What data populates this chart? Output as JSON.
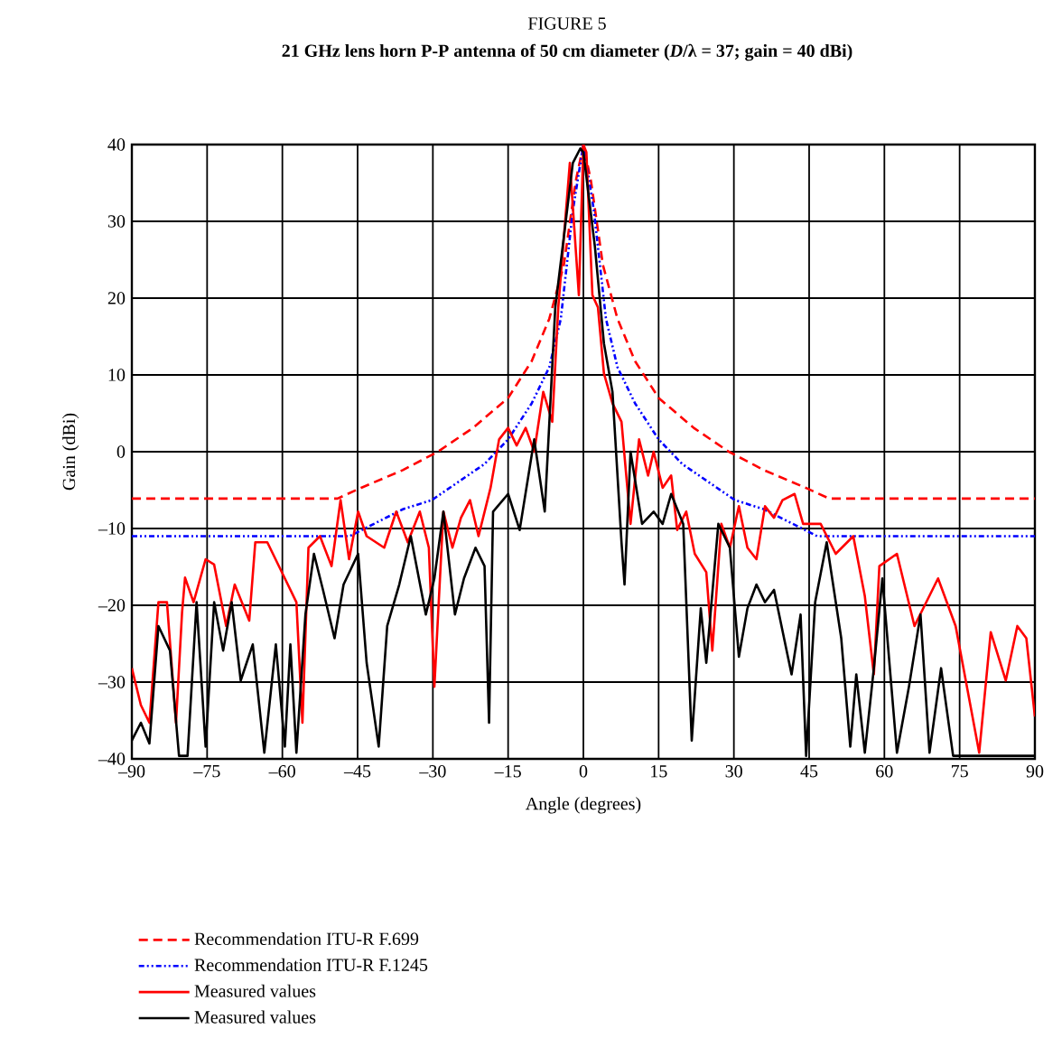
{
  "chart_data": {
    "type": "line",
    "title": "FIGURE 5",
    "subtitle": "21 GHz lens horn P-P antenna of 50 cm diameter (*D*/λ = 37; gain = 40 dBi)",
    "xlabel": "Angle (degrees)",
    "ylabel": "Gain (dBi)",
    "xlim": [
      -90,
      90
    ],
    "ylim": [
      -40,
      40
    ],
    "xticks": [
      {
        "value": -90,
        "label": "–90"
      },
      {
        "value": -75,
        "label": "–75"
      },
      {
        "value": -60,
        "label": "–60"
      },
      {
        "value": -45,
        "label": "–45"
      },
      {
        "value": -30,
        "label": "–30"
      },
      {
        "value": -15,
        "label": "–15"
      },
      0,
      15,
      30,
      45,
      60,
      75,
      90
    ],
    "yticks": [
      {
        "value": -40,
        "label": "–40"
      },
      {
        "value": -30,
        "label": "–30"
      },
      {
        "value": -20,
        "label": "–20"
      },
      {
        "value": -10,
        "label": "–10"
      },
      0,
      10,
      20,
      30,
      40
    ],
    "grid": true,
    "legend": "bottom",
    "marker": "none",
    "series": [
      {
        "name": "Recommendation ITU-R F.699",
        "color": "#ff0000",
        "line_style": "dashed",
        "x": [
          -90,
          -49,
          -44.3,
          -36,
          -29,
          -22,
          -15,
          -10.3,
          -6.8,
          -3.9,
          -1.5,
          0,
          1.5,
          3.9,
          6.8,
          10.3,
          15,
          22,
          29,
          36,
          44.3,
          49,
          90
        ],
        "values": [
          -6.1,
          -6.1,
          -4.7,
          -2.4,
          0,
          3.1,
          7,
          11.8,
          17.3,
          24.3,
          35.3,
          40,
          35.3,
          24.3,
          17.3,
          11.8,
          7,
          3.1,
          0,
          -2.4,
          -4.7,
          -6.1,
          -6.1
        ]
      },
      {
        "name": "Recommendation ITU-R F.1245",
        "color": "#0000ff",
        "line_style": "dotted",
        "x": [
          -90,
          -46.6,
          -36,
          -30.2,
          -19.7,
          -15,
          -10.3,
          -6.8,
          -4.5,
          -2.1,
          0,
          2.1,
          4.5,
          6.8,
          10.3,
          15,
          19.7,
          30.2,
          36,
          46.6,
          90
        ],
        "values": [
          -11,
          -11,
          -7.5,
          -6.3,
          -1.6,
          1.6,
          6.3,
          11,
          17.3,
          31.4,
          40,
          31.4,
          17.3,
          11,
          6.3,
          1.6,
          -1.6,
          -6.3,
          -7.5,
          -11,
          -11
        ]
      },
      {
        "name": "Measured values",
        "color": "#ff0000",
        "line_style": "solid",
        "x": [
          -90,
          -88.2,
          -86.5,
          -84.7,
          -83,
          -81.2,
          -80,
          -79.4,
          -77.7,
          -75.3,
          -73.6,
          -71.2,
          -69.5,
          -66.6,
          -65.4,
          -63,
          -59.5,
          -57.2,
          -56,
          -54.8,
          -52.5,
          -50.2,
          -48.4,
          -46.7,
          -44.9,
          -43.2,
          -39.7,
          -37.3,
          -35,
          -32.6,
          -30.8,
          -29.7,
          -27.9,
          -26.1,
          -24.4,
          -22.6,
          -20.9,
          -18.5,
          -16.8,
          -15,
          -13.3,
          -11.5,
          -9.8,
          -8,
          -6.2,
          -5,
          -2.7,
          -0.9,
          0,
          0.6,
          1.8,
          2.9,
          4.1,
          5.8,
          7.6,
          9.4,
          11.1,
          12.9,
          14,
          15.8,
          17.5,
          18.7,
          20.5,
          22.2,
          24.5,
          25.7,
          27.5,
          29.2,
          31,
          32.7,
          34.5,
          36.2,
          38,
          39.7,
          42.1,
          43.8,
          47.3,
          50.3,
          53.8,
          56.1,
          57.9,
          59,
          62.5,
          66,
          70.7,
          74.2,
          78.9,
          81.2,
          84.2,
          86.5,
          88.3,
          90
        ],
        "values": [
          -28.2,
          -33,
          -35.3,
          -19.6,
          -19.6,
          -35.3,
          -21,
          -16.4,
          -19.6,
          -14,
          -14.7,
          -22.7,
          -17.3,
          -22,
          -11.8,
          -11.8,
          -16.5,
          -19.6,
          -35.3,
          -12.5,
          -11,
          -14.9,
          -6.3,
          -14,
          -7.8,
          -11,
          -12.5,
          -7.8,
          -11.8,
          -7.8,
          -12.5,
          -30.6,
          -7.8,
          -12.5,
          -8.6,
          -6.3,
          -11,
          -4.7,
          1.6,
          3.1,
          0.8,
          3.1,
          0,
          7.8,
          3.9,
          18.8,
          37.6,
          20.4,
          40,
          39,
          20.4,
          18.8,
          10.2,
          6.3,
          3.9,
          -9.4,
          1.6,
          -3.1,
          0,
          -4.7,
          -3.1,
          -10.2,
          -7.8,
          -13.3,
          -15.7,
          -25.9,
          -9.4,
          -12.5,
          -7.1,
          -12.5,
          -14,
          -7.1,
          -8.6,
          -6.3,
          -5.5,
          -9.4,
          -9.4,
          -13.3,
          -11,
          -18.8,
          -29,
          -14.9,
          -13.3,
          -22.7,
          -16.5,
          -22.7,
          -39.2,
          -23.5,
          -29.8,
          -22.7,
          -24.3,
          -34.5
        ]
      },
      {
        "name": "Measured values",
        "color": "#000000",
        "line_style": "solid",
        "x": [
          -90,
          -88.2,
          -86.5,
          -84.7,
          -82.4,
          -80.6,
          -78.9,
          -77.1,
          -75.3,
          -73.6,
          -71.8,
          -70.1,
          -68.3,
          -65.9,
          -63.6,
          -61.3,
          -59.5,
          -58.4,
          -57.2,
          -55.4,
          -53.7,
          -51.9,
          -49.6,
          -47.8,
          -44.9,
          -43.2,
          -40.8,
          -39.1,
          -36.7,
          -34.4,
          -31.4,
          -29.7,
          -27.9,
          -25.6,
          -23.8,
          -21.5,
          -19.7,
          -18.8,
          -18,
          -15,
          -12.7,
          -9.8,
          -7.7,
          -5.6,
          -2.1,
          -0.6,
          0,
          2.3,
          4.1,
          5.8,
          7.6,
          8.2,
          9.4,
          11.7,
          14,
          15.8,
          17.5,
          19.9,
          21.6,
          23.4,
          24.5,
          26.9,
          29.2,
          31,
          32.7,
          34.5,
          36.2,
          38,
          41.5,
          43.3,
          44.4,
          46.2,
          48.5,
          51.4,
          53.2,
          54.4,
          56.1,
          57.9,
          59.6,
          62.5,
          64.9,
          67.2,
          69,
          71.3,
          73.7,
          90
        ],
        "values": [
          -37.6,
          -35.3,
          -38,
          -22.7,
          -25.9,
          -39.6,
          -39.6,
          -19.6,
          -38.4,
          -19.6,
          -25.9,
          -19.6,
          -29.8,
          -25.1,
          -39.2,
          -25.1,
          -38.4,
          -25.1,
          -39.2,
          -21.2,
          -13.3,
          -18,
          -24.3,
          -17.3,
          -13.3,
          -27.5,
          -38.4,
          -22.7,
          -17.3,
          -11,
          -21.2,
          -16.5,
          -7.8,
          -21.2,
          -16.5,
          -12.5,
          -14.9,
          -35.3,
          -7.8,
          -5.5,
          -10.2,
          1.6,
          -7.8,
          18.8,
          37.6,
          39.5,
          39,
          26.7,
          14.1,
          7.8,
          -11.8,
          -17.3,
          0,
          -9.4,
          -7.8,
          -9.4,
          -5.5,
          -9.4,
          -37.6,
          -20.4,
          -27.5,
          -9.4,
          -12.5,
          -26.7,
          -20.4,
          -17.3,
          -19.6,
          -18,
          -29,
          -21.2,
          -39.6,
          -19.6,
          -11.8,
          -24.3,
          -38.4,
          -29,
          -39.2,
          -28.2,
          -16.5,
          -39.2,
          -30.6,
          -21.2,
          -39.2,
          -28.2,
          -39.6,
          -39.6
        ]
      }
    ]
  }
}
